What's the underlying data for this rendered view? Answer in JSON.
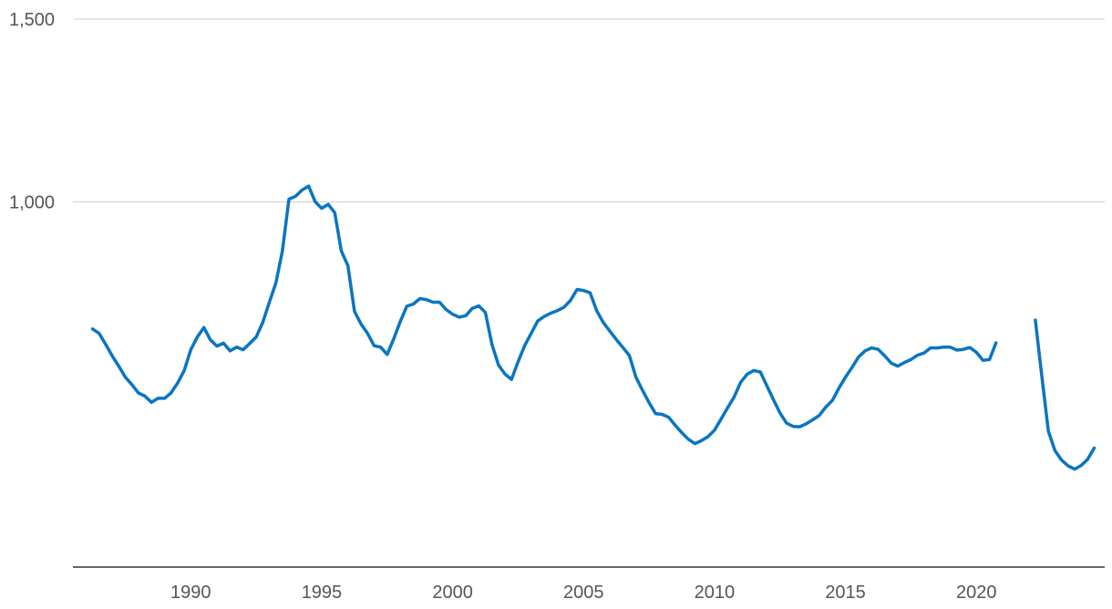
{
  "chart_data": {
    "type": "line",
    "title": "",
    "xlabel": "",
    "ylabel": "",
    "xlim": [
      1985.5,
      2024.9
    ],
    "ylim": [
      0,
      1500
    ],
    "grid": true,
    "legend": "none",
    "y_ticks": [
      {
        "value": 1000,
        "label": "1,000"
      },
      {
        "value": 1500,
        "label": "1,500"
      }
    ],
    "x_ticks": [
      {
        "value": 1990,
        "label": "1990"
      },
      {
        "value": 1995,
        "label": "1995"
      },
      {
        "value": 2000,
        "label": "2000"
      },
      {
        "value": 2005,
        "label": "2005"
      },
      {
        "value": 2010,
        "label": "2010"
      },
      {
        "value": 2015,
        "label": "2015"
      },
      {
        "value": 2020,
        "label": "2020"
      }
    ],
    "series": [
      {
        "color": "#0a75c2",
        "segments": [
          [
            [
              1986.25,
              652
            ],
            [
              1986.5,
              640
            ],
            [
              1986.75,
              610
            ],
            [
              1987.0,
              578
            ],
            [
              1987.25,
              550
            ],
            [
              1987.5,
              520
            ],
            [
              1987.75,
              500
            ],
            [
              1988.0,
              477
            ],
            [
              1988.25,
              468
            ],
            [
              1988.5,
              451
            ],
            [
              1988.75,
              462
            ],
            [
              1989.0,
              462
            ],
            [
              1989.25,
              477
            ],
            [
              1989.5,
              504
            ],
            [
              1989.75,
              538
            ],
            [
              1990.0,
              595
            ],
            [
              1990.25,
              630
            ],
            [
              1990.5,
              656
            ],
            [
              1990.75,
              622
            ],
            [
              1991.0,
              605
            ],
            [
              1991.25,
              613
            ],
            [
              1991.5,
              592
            ],
            [
              1991.75,
              602
            ],
            [
              1992.0,
              595
            ],
            [
              1992.25,
              612
            ],
            [
              1992.5,
              630
            ],
            [
              1992.75,
              670
            ],
            [
              1993.0,
              725
            ],
            [
              1993.25,
              778
            ],
            [
              1993.5,
              865
            ],
            [
              1993.75,
              1007
            ],
            [
              1994.0,
              1015
            ],
            [
              1994.25,
              1032
            ],
            [
              1994.5,
              1043
            ],
            [
              1994.75,
              1000
            ],
            [
              1995.0,
              982
            ],
            [
              1995.25,
              993
            ],
            [
              1995.5,
              970
            ],
            [
              1995.75,
              865
            ],
            [
              1996.0,
              825
            ],
            [
              1996.25,
              700
            ],
            [
              1996.5,
              666
            ],
            [
              1996.75,
              640
            ],
            [
              1997.0,
              606
            ],
            [
              1997.25,
              602
            ],
            [
              1997.5,
              582
            ],
            [
              1997.75,
              625
            ],
            [
              1998.0,
              672
            ],
            [
              1998.25,
              714
            ],
            [
              1998.5,
              720
            ],
            [
              1998.75,
              735
            ],
            [
              1999.0,
              732
            ],
            [
              1999.25,
              725
            ],
            [
              1999.5,
              725
            ],
            [
              1999.75,
              705
            ],
            [
              2000.0,
              692
            ],
            [
              2000.25,
              684
            ],
            [
              2000.5,
              688
            ],
            [
              2000.75,
              708
            ],
            [
              2001.0,
              715
            ],
            [
              2001.25,
              697
            ],
            [
              2001.5,
              610
            ],
            [
              2001.75,
              553
            ],
            [
              2002.0,
              528
            ],
            [
              2002.25,
              514
            ],
            [
              2002.5,
              562
            ],
            [
              2002.75,
              606
            ],
            [
              2003.0,
              640
            ],
            [
              2003.25,
              674
            ],
            [
              2003.5,
              686
            ],
            [
              2003.75,
              695
            ],
            [
              2004.0,
              702
            ],
            [
              2004.25,
              711
            ],
            [
              2004.5,
              730
            ],
            [
              2004.75,
              760
            ],
            [
              2005.0,
              757
            ],
            [
              2005.25,
              751
            ],
            [
              2005.5,
              702
            ],
            [
              2005.75,
              670
            ],
            [
              2006.0,
              646
            ],
            [
              2006.25,
              623
            ],
            [
              2006.5,
              601
            ],
            [
              2006.75,
              579
            ],
            [
              2007.0,
              520
            ],
            [
              2007.25,
              484
            ],
            [
              2007.5,
              450
            ],
            [
              2007.75,
              420
            ],
            [
              2008.0,
              418
            ],
            [
              2008.25,
              410
            ],
            [
              2008.5,
              388
            ],
            [
              2008.75,
              368
            ],
            [
              2009.0,
              350
            ],
            [
              2009.25,
              338
            ],
            [
              2009.5,
              346
            ],
            [
              2009.75,
              357
            ],
            [
              2010.0,
              375
            ],
            [
              2010.25,
              405
            ],
            [
              2010.5,
              436
            ],
            [
              2010.75,
              466
            ],
            [
              2011.0,
              506
            ],
            [
              2011.25,
              528
            ],
            [
              2011.5,
              538
            ],
            [
              2011.75,
              534
            ],
            [
              2012.0,
              496
            ],
            [
              2012.25,
              458
            ],
            [
              2012.5,
              422
            ],
            [
              2012.75,
              394
            ],
            [
              2013.0,
              385
            ],
            [
              2013.25,
              384
            ],
            [
              2013.5,
              392
            ],
            [
              2013.75,
              403
            ],
            [
              2014.0,
              415
            ],
            [
              2014.25,
              438
            ],
            [
              2014.5,
              456
            ],
            [
              2014.75,
              490
            ],
            [
              2015.0,
              520
            ],
            [
              2015.25,
              546
            ],
            [
              2015.5,
              575
            ],
            [
              2015.75,
              592
            ],
            [
              2016.0,
              600
            ],
            [
              2016.25,
              596
            ],
            [
              2016.5,
              578
            ],
            [
              2016.75,
              558
            ],
            [
              2017.0,
              550
            ],
            [
              2017.25,
              560
            ],
            [
              2017.5,
              568
            ],
            [
              2017.75,
              580
            ],
            [
              2018.0,
              586
            ],
            [
              2018.25,
              600
            ],
            [
              2018.5,
              600
            ],
            [
              2018.75,
              602
            ],
            [
              2019.0,
              602
            ],
            [
              2019.25,
              594
            ],
            [
              2019.5,
              596
            ],
            [
              2019.75,
              601
            ],
            [
              2020.0,
              588
            ],
            [
              2020.25,
              566
            ],
            [
              2020.5,
              568
            ],
            [
              2020.75,
              614
            ]
          ],
          [
            [
              2022.25,
              676
            ],
            [
              2022.5,
              523
            ],
            [
              2022.75,
              372
            ],
            [
              2023.0,
              319
            ],
            [
              2023.25,
              293
            ],
            [
              2023.5,
              277
            ],
            [
              2023.75,
              268
            ],
            [
              2024.0,
              278
            ],
            [
              2024.25,
              295
            ],
            [
              2024.5,
              326
            ]
          ]
        ]
      }
    ]
  }
}
